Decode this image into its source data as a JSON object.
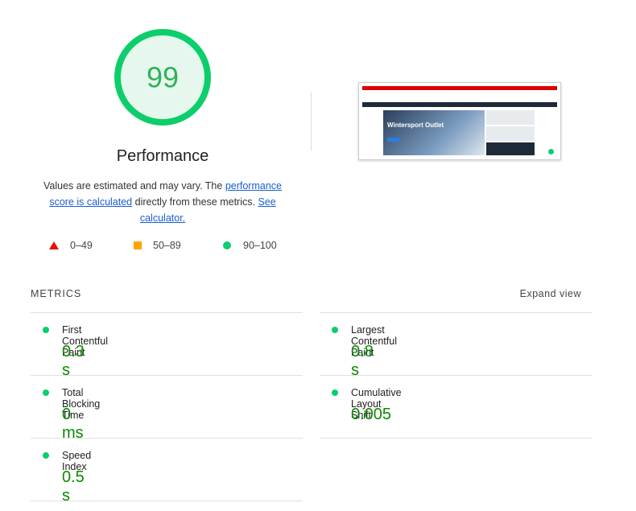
{
  "gauge": {
    "score": "99",
    "title": "Performance"
  },
  "description": {
    "text1": "Values are estimated and may vary. The ",
    "link1": "performance score is calculated",
    "text2": " directly from these metrics. ",
    "link2": "See calculator."
  },
  "legend": [
    "0–49",
    "50–89",
    "90–100"
  ],
  "screenshot": {
    "heading": "Wintersport Outlet"
  },
  "metrics": {
    "title": "METRICS",
    "toggle": "Expand view",
    "items": [
      {
        "name": "First Contentful Paint",
        "value": "0.3 s"
      },
      {
        "name": "Largest Contentful Paint",
        "value": "0.8 s"
      },
      {
        "name": "Total Blocking Time",
        "value": "0 ms"
      },
      {
        "name": "Cumulative Layout Shift",
        "value": "0.005"
      },
      {
        "name": "Speed Index",
        "value": "0.5 s"
      }
    ]
  }
}
